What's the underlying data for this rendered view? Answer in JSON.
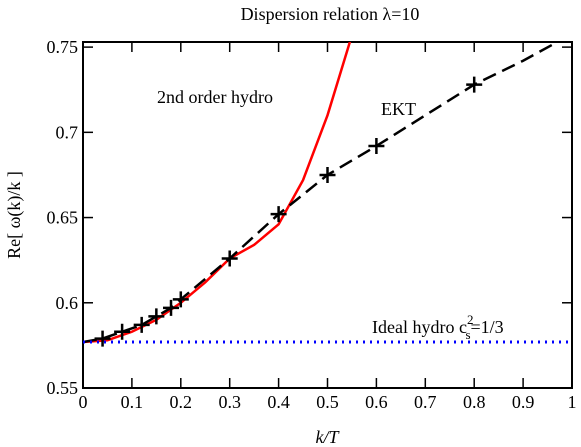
{
  "chart_data": {
    "type": "line",
    "title": "Dispersion relation λ=10",
    "x_label": "k/T",
    "y_label": "Re[ ω(k)/k ]",
    "xlim": [
      0,
      1
    ],
    "ylim": [
      0.55,
      0.753
    ],
    "xticks": [
      0,
      0.1,
      0.2,
      0.3,
      0.4,
      0.5,
      0.6,
      0.7,
      0.8,
      0.9,
      1
    ],
    "yticks": [
      0.55,
      0.6,
      0.65,
      0.7,
      0.75
    ],
    "series": [
      {
        "name": "2nd order hydro",
        "color": "#ff0000",
        "style": "solid",
        "x": [
          0,
          0.05,
          0.1,
          0.15,
          0.2,
          0.25,
          0.3,
          0.35,
          0.4,
          0.45,
          0.5,
          0.55
        ],
        "values": [
          0.577,
          0.578,
          0.583,
          0.59,
          0.6,
          0.612,
          0.626,
          0.634,
          0.646,
          0.672,
          0.71,
          0.757
        ]
      },
      {
        "name": "EKT",
        "color": "#000000",
        "style": "dashed",
        "x": [
          0,
          0.04,
          0.08,
          0.12,
          0.15,
          0.18,
          0.2,
          0.3,
          0.4,
          0.5,
          0.6,
          0.7,
          0.8,
          0.9,
          0.97
        ],
        "values": [
          0.577,
          0.579,
          0.583,
          0.587,
          0.592,
          0.597,
          0.602,
          0.626,
          0.652,
          0.675,
          0.692,
          0.71,
          0.728,
          0.742,
          0.753
        ],
        "markers": {
          "x": [
            0.04,
            0.08,
            0.12,
            0.15,
            0.18,
            0.2,
            0.3,
            0.4,
            0.5,
            0.6,
            0.8
          ],
          "values": [
            0.579,
            0.583,
            0.587,
            0.592,
            0.597,
            0.602,
            0.626,
            0.652,
            0.675,
            0.692,
            0.728
          ]
        }
      },
      {
        "name": "Ideal hydro",
        "color": "#0000ff",
        "style": "dotted",
        "x": [
          0,
          1
        ],
        "values": [
          0.577,
          0.577
        ]
      }
    ],
    "annotations": [
      {
        "text": "2nd order hydro"
      },
      {
        "text": "EKT"
      },
      {
        "text": "Ideal hydro c",
        "sup": "2",
        "sub": "s",
        "rest": "=1/3"
      }
    ]
  }
}
